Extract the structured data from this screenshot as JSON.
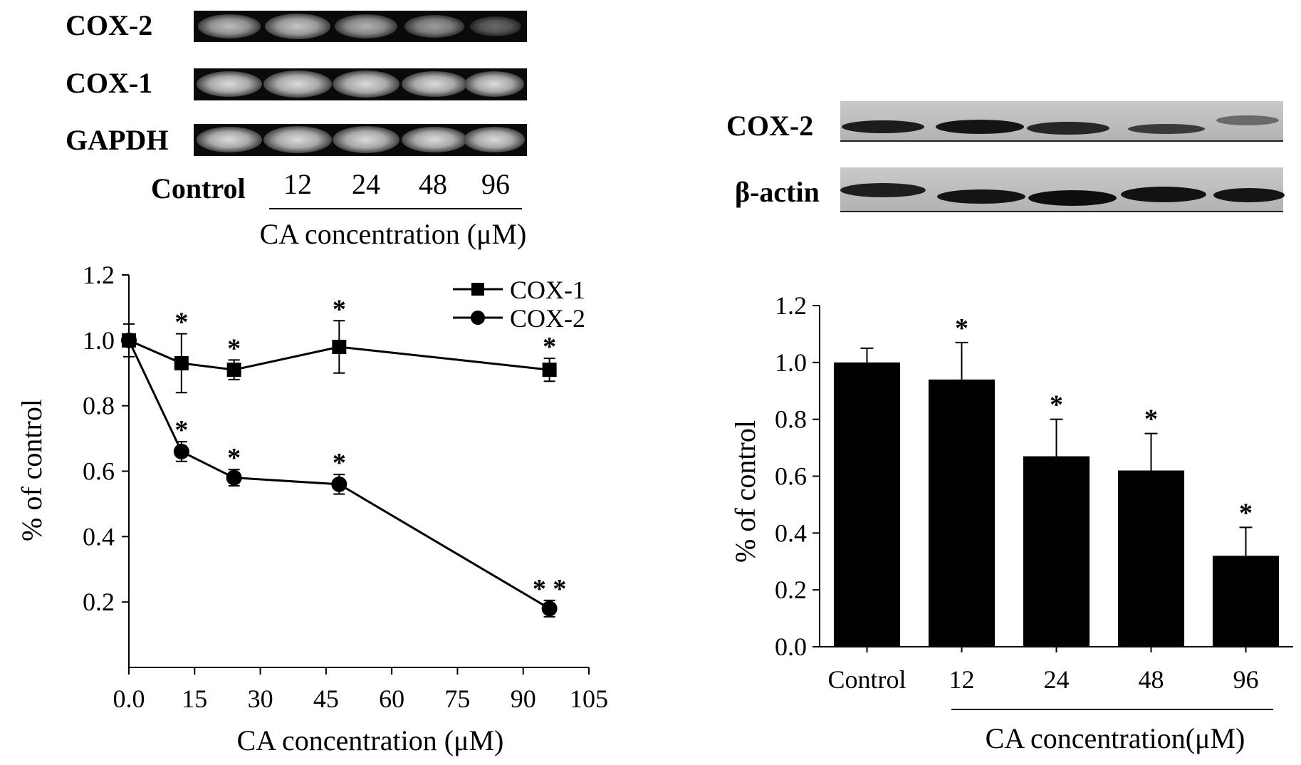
{
  "left_gel": {
    "rows": [
      "COX-2",
      "COX-1",
      "GAPDH"
    ],
    "lanes": [
      "Control",
      "12",
      "24",
      "48",
      "96"
    ],
    "group_label": "CA concentration (μM)"
  },
  "right_blot": {
    "rows": [
      "COX-2",
      "β-actin"
    ]
  },
  "chart_data": [
    {
      "type": "line",
      "xlabel": "CA concentration (μM)",
      "ylabel": "% of control",
      "xlim": [
        0,
        105
      ],
      "ylim": [
        0,
        1.2
      ],
      "x_ticks": [
        "0.0",
        "15",
        "30",
        "45",
        "60",
        "75",
        "90",
        "105"
      ],
      "y_ticks": [
        "0.2",
        "0.4",
        "0.6",
        "0.8",
        "1.0",
        "1.2"
      ],
      "legend_position": "top-right",
      "grid": false,
      "x": [
        0,
        12,
        24,
        48,
        96
      ],
      "series": [
        {
          "name": "COX-1",
          "marker": "square",
          "values": [
            1.0,
            0.93,
            0.91,
            0.98,
            0.91
          ],
          "errors": [
            0.05,
            0.09,
            0.03,
            0.08,
            0.035
          ],
          "annotations": [
            "",
            "*",
            "*",
            "*",
            "*"
          ]
        },
        {
          "name": "COX-2",
          "marker": "circle",
          "values": [
            1.0,
            0.66,
            0.58,
            0.56,
            0.18
          ],
          "errors": [
            0.0,
            0.03,
            0.025,
            0.03,
            0.025
          ],
          "annotations": [
            "",
            "*",
            "*",
            "*",
            "* *"
          ]
        }
      ]
    },
    {
      "type": "bar",
      "xlabel": "CA concentration(μM)",
      "ylabel": "% of control",
      "ylim": [
        0,
        1.2
      ],
      "y_ticks": [
        "0.0",
        "0.2",
        "0.4",
        "0.6",
        "0.8",
        "1.0",
        "1.2"
      ],
      "grid": false,
      "categories": [
        "Control",
        "12",
        "24",
        "48",
        "96"
      ],
      "values": [
        1.0,
        0.94,
        0.67,
        0.62,
        0.32
      ],
      "errors": [
        0.05,
        0.13,
        0.13,
        0.13,
        0.1
      ],
      "annotations": [
        "",
        "*",
        "*",
        "*",
        "*"
      ]
    }
  ]
}
